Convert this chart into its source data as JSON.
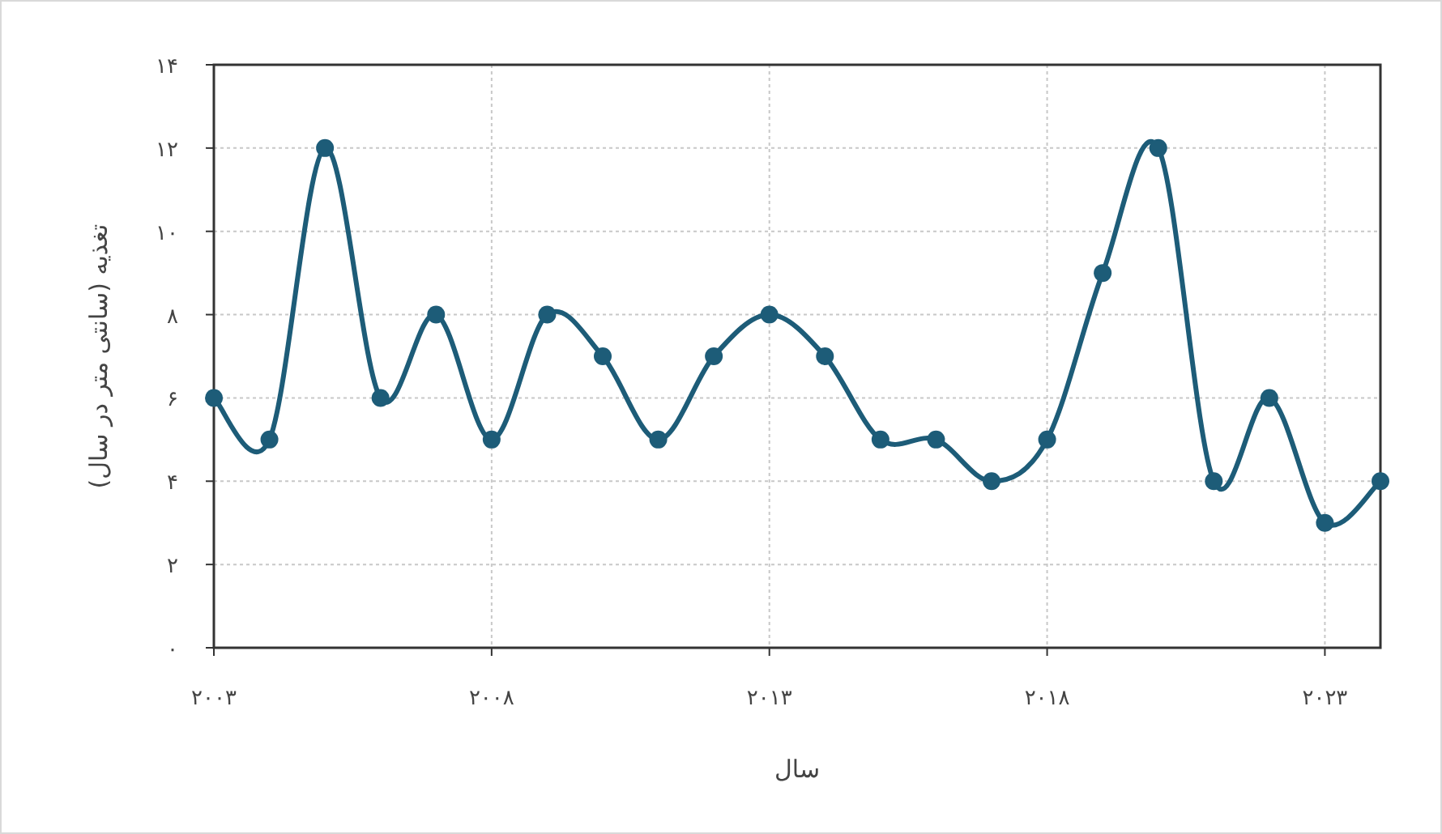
{
  "chart_data": {
    "type": "line",
    "xlabel": "سال",
    "ylabel": "تغذیه (سانتی متر در سال)",
    "x": [
      2003,
      2004,
      2005,
      2006,
      2007,
      2008,
      2009,
      2010,
      2011,
      2012,
      2013,
      2014,
      2015,
      2016,
      2017,
      2018,
      2019,
      2020,
      2021,
      2022,
      2023,
      2024
    ],
    "series": [
      {
        "color": "#1d5c78",
        "values": [
          6,
          5,
          12,
          6,
          8,
          5,
          8,
          7,
          5,
          7,
          8,
          7,
          5,
          5,
          4,
          5,
          9,
          12,
          4,
          6,
          3,
          4
        ]
      }
    ],
    "xlim": [
      2003,
      2024
    ],
    "xticks": [
      {
        "value": 2003,
        "label": "۲۰۰۳"
      },
      {
        "value": 2008,
        "label": "۲۰۰۸"
      },
      {
        "value": 2013,
        "label": "۲۰۱۳"
      },
      {
        "value": 2018,
        "label": "۲۰۱۸"
      },
      {
        "value": 2023,
        "label": "۲۰۲۳"
      }
    ],
    "ylim": [
      0,
      14
    ],
    "yticks": [
      {
        "value": 0,
        "label": "۰"
      },
      {
        "value": 2,
        "label": "۲"
      },
      {
        "value": 4,
        "label": "۴"
      },
      {
        "value": 6,
        "label": "۶"
      },
      {
        "value": 8,
        "label": "۸"
      },
      {
        "value": 10,
        "label": "۱۰"
      },
      {
        "value": 12,
        "label": "۱۲"
      },
      {
        "value": 14,
        "label": "۱۴"
      }
    ],
    "grid": true,
    "marker": "circle",
    "line_style": "solid"
  }
}
